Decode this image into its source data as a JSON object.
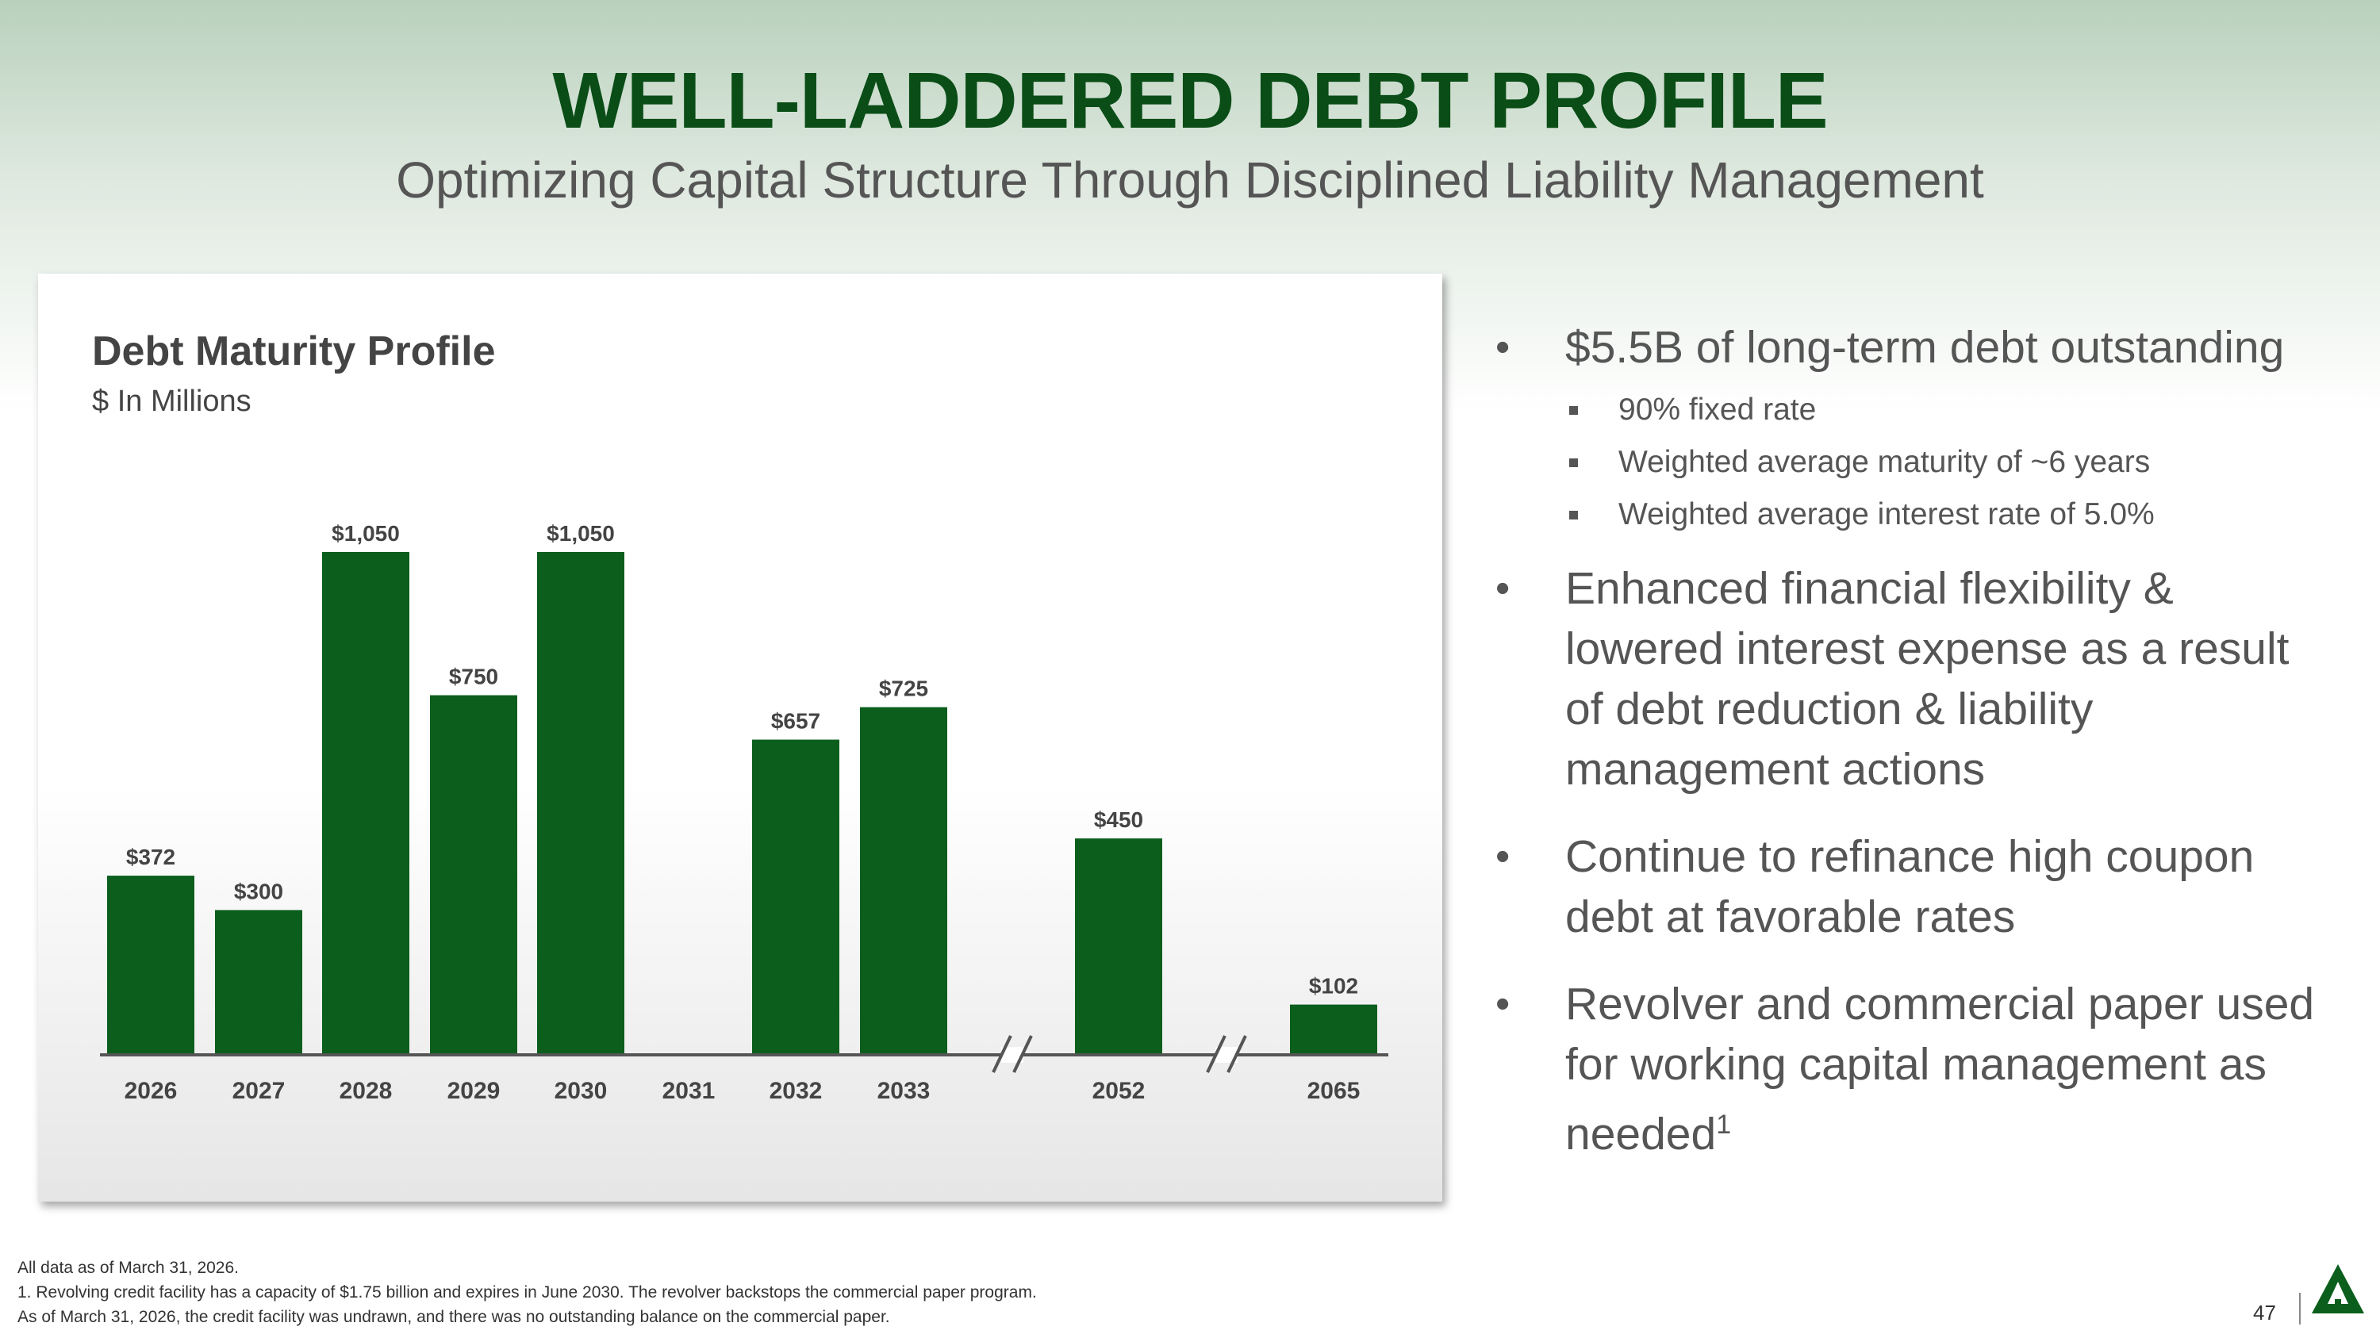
{
  "title": "WELL-LADDERED DEBT PROFILE",
  "subtitle": "Optimizing Capital Structure Through Disciplined Liability Management",
  "chart_data": {
    "type": "bar",
    "title": "Debt Maturity Profile",
    "units": "$ In Millions",
    "categories": [
      "2026",
      "2027",
      "2028",
      "2029",
      "2030",
      "2031",
      "2032",
      "2033",
      "2052",
      "2065"
    ],
    "values": [
      372,
      300,
      1050,
      750,
      1050,
      null,
      657,
      725,
      450,
      102
    ],
    "labels": [
      "$372",
      "$300",
      "$1,050",
      "$750",
      "$1,050",
      "",
      "$657",
      "$725",
      "$450",
      "$102"
    ],
    "axis_breaks_after": [
      "2033",
      "2052"
    ],
    "ylim": [
      0,
      1050
    ],
    "bar_color": "#0b5e1c",
    "grid": false,
    "legend": "none"
  },
  "bullets": {
    "b1": "$5.5B of long-term debt outstanding",
    "b1_sub": [
      "90% fixed rate",
      "Weighted average maturity of ~6 years",
      "Weighted average interest rate of 5.0%"
    ],
    "b2": [
      "Enhanced financial flexibility &",
      "lowered interest expense as a result",
      "of debt reduction & liability",
      "management actions"
    ],
    "b3": [
      "Continue to refinance high coupon",
      "debt at favorable rates"
    ],
    "b4": [
      "Revolver and commercial paper used",
      "for working capital management as"
    ],
    "b4_last": "needed",
    "b4_sup": "1"
  },
  "footnotes": [
    "All data as of March 31, 2026.",
    "1. Revolving credit facility has a capacity of $1.75 billion and expires in June 2030. The revolver backstops the commercial paper program.",
    "As of March 31, 2026, the credit facility was undrawn, and there was no outstanding balance on the commercial paper."
  ],
  "page_number": "47",
  "colors": {
    "title": "#0a4d17",
    "bar": "#0b5e1c",
    "text": "#555555"
  },
  "logo_icon": "tree-logo-icon"
}
